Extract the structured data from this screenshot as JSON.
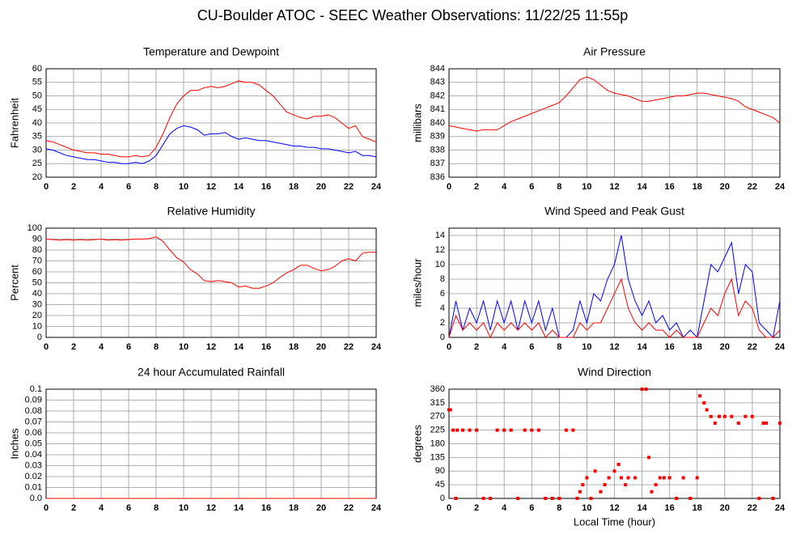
{
  "title": "CU-Boulder ATOC - SEEC Weather Observations: 11/22/25 11:55p",
  "chart_data": [
    {
      "type": "line",
      "title": "Temperature and Dewpoint",
      "ylabel": "Fahrenheit",
      "grid": true,
      "xlim": [
        0,
        24
      ],
      "xticks": [
        0,
        2,
        4,
        6,
        8,
        10,
        12,
        14,
        16,
        18,
        20,
        22,
        24
      ],
      "ylim": [
        20,
        60
      ],
      "yticks": [
        20,
        25,
        30,
        35,
        40,
        45,
        50,
        55,
        60
      ],
      "x": [
        0,
        0.5,
        1,
        1.5,
        2,
        2.5,
        3,
        3.5,
        4,
        4.5,
        5,
        5.5,
        6,
        6.5,
        7,
        7.5,
        8,
        8.5,
        9,
        9.5,
        10,
        10.5,
        11,
        11.5,
        12,
        12.5,
        13,
        13.5,
        14,
        14.5,
        15,
        15.5,
        16,
        16.5,
        17,
        17.5,
        18,
        18.5,
        19,
        19.5,
        20,
        20.5,
        21,
        21.5,
        22,
        22.5,
        23,
        23.5,
        24
      ],
      "series": [
        {
          "color": "#ff0000",
          "values": [
            33.5,
            33,
            32,
            31,
            30,
            29.5,
            29,
            29,
            28.5,
            28.5,
            28,
            27.5,
            27.5,
            28,
            27.5,
            28,
            31,
            36,
            42,
            47,
            50,
            52,
            52,
            53,
            53.5,
            53,
            53.5,
            54.5,
            55.5,
            55,
            55,
            54,
            52,
            50,
            47,
            44,
            43,
            42,
            41.5,
            42.5,
            42.5,
            43,
            42,
            40,
            38,
            39,
            35,
            34,
            33
          ]
        },
        {
          "color": "#0000ff",
          "values": [
            30.5,
            30,
            29,
            28,
            27.5,
            27,
            26.5,
            26.5,
            26,
            25.5,
            25.5,
            25,
            25,
            25.5,
            25,
            26,
            28,
            32,
            36,
            38,
            39,
            38.5,
            37.5,
            35.5,
            36,
            36,
            36.5,
            35,
            34,
            34.5,
            34,
            33.5,
            33.5,
            33,
            32.5,
            32,
            31.5,
            31.5,
            31,
            31,
            30.5,
            30.5,
            30,
            29.5,
            29,
            29.5,
            28,
            28,
            27.5
          ]
        }
      ]
    },
    {
      "type": "line",
      "title": "Air Pressure",
      "ylabel": "millibars",
      "grid": true,
      "xlim": [
        0,
        24
      ],
      "xticks": [
        0,
        2,
        4,
        6,
        8,
        10,
        12,
        14,
        16,
        18,
        20,
        22,
        24
      ],
      "ylim": [
        836,
        844
      ],
      "yticks": [
        836,
        837,
        838,
        839,
        840,
        841,
        842,
        843,
        844
      ],
      "x": [
        0,
        0.5,
        1,
        1.5,
        2,
        2.5,
        3,
        3.5,
        4,
        4.5,
        5,
        5.5,
        6,
        6.5,
        7,
        7.5,
        8,
        8.5,
        9,
        9.5,
        10,
        10.5,
        11,
        11.5,
        12,
        12.5,
        13,
        13.5,
        14,
        14.5,
        15,
        15.5,
        16,
        16.5,
        17,
        17.5,
        18,
        18.5,
        19,
        19.5,
        20,
        20.5,
        21,
        21.5,
        22,
        22.5,
        23,
        23.5,
        24
      ],
      "series": [
        {
          "color": "#ff0000",
          "values": [
            839.8,
            839.7,
            839.6,
            839.5,
            839.4,
            839.5,
            839.5,
            839.5,
            839.8,
            840.1,
            840.3,
            840.5,
            840.7,
            840.9,
            841.1,
            841.3,
            841.5,
            842.0,
            842.6,
            843.2,
            843.4,
            843.2,
            842.8,
            842.4,
            842.2,
            842.1,
            842.0,
            841.8,
            841.6,
            841.6,
            841.7,
            841.8,
            841.9,
            842.0,
            842.0,
            842.1,
            842.2,
            842.2,
            842.1,
            842.0,
            841.9,
            841.8,
            841.6,
            841.2,
            841.0,
            840.8,
            840.6,
            840.4,
            840.0
          ]
        }
      ]
    },
    {
      "type": "line",
      "title": "Relative Humidity",
      "ylabel": "Percent",
      "grid": true,
      "xlim": [
        0,
        24
      ],
      "xticks": [
        0,
        2,
        4,
        6,
        8,
        10,
        12,
        14,
        16,
        18,
        20,
        22,
        24
      ],
      "ylim": [
        0,
        100
      ],
      "yticks": [
        0,
        10,
        20,
        30,
        40,
        50,
        60,
        70,
        80,
        90,
        100
      ],
      "x": [
        0,
        0.5,
        1,
        1.5,
        2,
        2.5,
        3,
        3.5,
        4,
        4.5,
        5,
        5.5,
        6,
        6.5,
        7,
        7.5,
        8,
        8.5,
        9,
        9.5,
        10,
        10.5,
        11,
        11.5,
        12,
        12.5,
        13,
        13.5,
        14,
        14.5,
        15,
        15.5,
        16,
        16.5,
        17,
        17.5,
        18,
        18.5,
        19,
        19.5,
        20,
        20.5,
        21,
        21.5,
        22,
        22.5,
        23,
        23.5,
        24
      ],
      "series": [
        {
          "color": "#ff0000",
          "values": [
            90,
            89.5,
            89,
            89.5,
            89,
            89.5,
            89,
            89.5,
            90,
            89,
            89.5,
            89,
            89.5,
            90,
            90,
            90.5,
            92,
            88,
            80,
            73,
            69,
            62,
            58,
            52,
            51,
            52,
            51,
            50,
            46,
            47,
            45,
            45,
            47,
            50,
            55,
            59,
            62,
            66,
            66,
            63,
            61,
            62,
            65,
            70,
            72,
            70,
            77,
            78,
            78
          ]
        }
      ]
    },
    {
      "type": "line",
      "title": "Wind Speed and Peak Gust",
      "ylabel": "miles/hour",
      "grid": true,
      "xlim": [
        0,
        24
      ],
      "xticks": [
        0,
        2,
        4,
        6,
        8,
        10,
        12,
        14,
        16,
        18,
        20,
        22,
        24
      ],
      "ylim": [
        0,
        15
      ],
      "yticks": [
        0,
        2,
        4,
        6,
        8,
        10,
        12,
        14
      ],
      "x": [
        0,
        0.5,
        1,
        1.5,
        2,
        2.5,
        3,
        3.5,
        4,
        4.5,
        5,
        5.5,
        6,
        6.5,
        7,
        7.5,
        8,
        8.5,
        9,
        9.5,
        10,
        10.5,
        11,
        11.5,
        12,
        12.5,
        13,
        13.5,
        14,
        14.5,
        15,
        15.5,
        16,
        16.5,
        17,
        17.5,
        18,
        18.5,
        19,
        19.5,
        20,
        20.5,
        21,
        21.5,
        22,
        22.5,
        23,
        23.5,
        24
      ],
      "series": [
        {
          "color": "#0000ff",
          "values": [
            0,
            5,
            1,
            4,
            2,
            5,
            1,
            5,
            2,
            5,
            1,
            5,
            2,
            5,
            1,
            4,
            0,
            0,
            1,
            5,
            2,
            6,
            5,
            8,
            10,
            14,
            8,
            5,
            3,
            5,
            2,
            3,
            1,
            2,
            0,
            1,
            0,
            5,
            10,
            9,
            11,
            13,
            6,
            10,
            9,
            2,
            1,
            0,
            5
          ]
        },
        {
          "color": "#ff0000",
          "values": [
            0,
            3,
            1,
            2,
            1,
            2,
            0,
            2,
            1,
            2,
            1,
            2,
            1,
            2,
            0,
            1,
            0,
            0,
            0,
            2,
            1,
            2,
            2,
            4,
            6,
            8,
            4,
            2,
            1,
            2,
            1,
            1,
            0,
            1,
            0,
            0,
            0,
            2,
            4,
            3,
            6,
            8,
            3,
            5,
            4,
            1,
            0,
            0,
            1
          ]
        }
      ]
    },
    {
      "type": "line",
      "title": "24 hour Accumulated Rainfall",
      "ylabel": "Inches",
      "grid": true,
      "xlim": [
        0,
        24
      ],
      "xticks": [
        0,
        2,
        4,
        6,
        8,
        10,
        12,
        14,
        16,
        18,
        20,
        22,
        24
      ],
      "ylim": [
        0,
        0.1
      ],
      "yticks": [
        {
          "value": 0,
          "label": "0.0"
        },
        0.01,
        0.02,
        0.03,
        0.04,
        0.05,
        0.06,
        0.07,
        0.08,
        0.09,
        0.1
      ],
      "x": [
        0,
        24
      ],
      "series": [
        {
          "color": "#ff0000",
          "values": [
            0,
            0
          ]
        }
      ]
    },
    {
      "type": "scatter",
      "title": "Wind Direction",
      "ylabel": "degrees",
      "xlabel": "Local Time (hour)",
      "grid": true,
      "xlim": [
        0,
        24
      ],
      "xticks": [
        0,
        2,
        4,
        6,
        8,
        10,
        12,
        14,
        16,
        18,
        20,
        22,
        24
      ],
      "ylim": [
        0,
        360
      ],
      "yticks": [
        0,
        45,
        90,
        135,
        180,
        225,
        270,
        315,
        360
      ],
      "x": [
        0,
        0.1,
        0.3,
        0.5,
        0.6,
        1,
        1.5,
        2,
        2.5,
        3,
        3.5,
        4,
        4.5,
        5,
        5.5,
        6,
        6.5,
        7,
        7.5,
        8,
        8.5,
        9,
        9.3,
        9.5,
        9.7,
        10,
        10.3,
        10.6,
        11,
        11.3,
        11.6,
        12,
        12.3,
        12.5,
        12.8,
        13,
        13.5,
        14,
        14.3,
        14.5,
        14.7,
        15,
        15.3,
        15.6,
        16,
        16.5,
        17,
        17.5,
        18,
        18.2,
        18.5,
        18.7,
        19,
        19.3,
        19.6,
        20,
        20.5,
        21,
        21.5,
        22,
        22.5,
        22.8,
        23,
        23.5,
        24
      ],
      "series": [
        {
          "color": "#ff0000",
          "values": [
            292,
            292,
            225,
            0,
            225,
            225,
            225,
            225,
            0,
            0,
            225,
            225,
            225,
            0,
            225,
            225,
            225,
            0,
            0,
            0,
            225,
            225,
            0,
            22,
            45,
            68,
            0,
            90,
            22,
            45,
            68,
            90,
            112,
            68,
            45,
            68,
            68,
            360,
            360,
            135,
            22,
            45,
            68,
            68,
            68,
            0,
            68,
            0,
            68,
            338,
            315,
            292,
            270,
            248,
            270,
            270,
            270,
            248,
            270,
            270,
            0,
            248,
            248,
            0,
            248
          ]
        }
      ]
    }
  ]
}
